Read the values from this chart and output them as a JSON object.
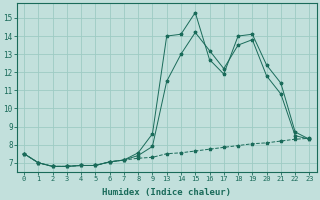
{
  "title": "",
  "xlabel": "Humidex (Indice chaleur)",
  "bg_color": "#c2e0dc",
  "grid_color": "#9ecbc4",
  "line_color": "#1a6b5a",
  "ylim": [
    6.5,
    15.8
  ],
  "yticks": [
    7,
    8,
    9,
    10,
    11,
    12,
    13,
    14,
    15
  ],
  "line1_y": [
    7.5,
    7.0,
    6.8,
    6.8,
    6.85,
    6.85,
    7.05,
    7.15,
    7.25,
    7.3,
    7.5,
    7.55,
    7.65,
    7.75,
    7.85,
    7.95,
    8.05,
    8.1,
    8.2,
    8.3,
    8.35
  ],
  "line2_y": [
    7.5,
    7.0,
    6.8,
    6.8,
    6.85,
    6.85,
    7.05,
    7.15,
    7.55,
    8.6,
    14.0,
    14.1,
    15.3,
    12.7,
    11.9,
    14.0,
    14.1,
    12.4,
    11.4,
    8.7,
    8.3
  ],
  "line3_y": [
    7.5,
    7.0,
    6.8,
    6.8,
    6.85,
    6.85,
    7.05,
    7.15,
    7.4,
    7.9,
    11.5,
    13.0,
    14.2,
    13.2,
    12.2,
    13.5,
    13.8,
    11.8,
    10.8,
    8.5,
    8.3
  ],
  "xtick_labels_left": [
    "0",
    "1",
    "2",
    "3",
    "4",
    "5",
    "6",
    "7",
    "8",
    "9"
  ],
  "xtick_labels_right": [
    "13",
    "14",
    "15",
    "16",
    "17",
    "18",
    "19",
    "20",
    "21",
    "22",
    "23"
  ]
}
